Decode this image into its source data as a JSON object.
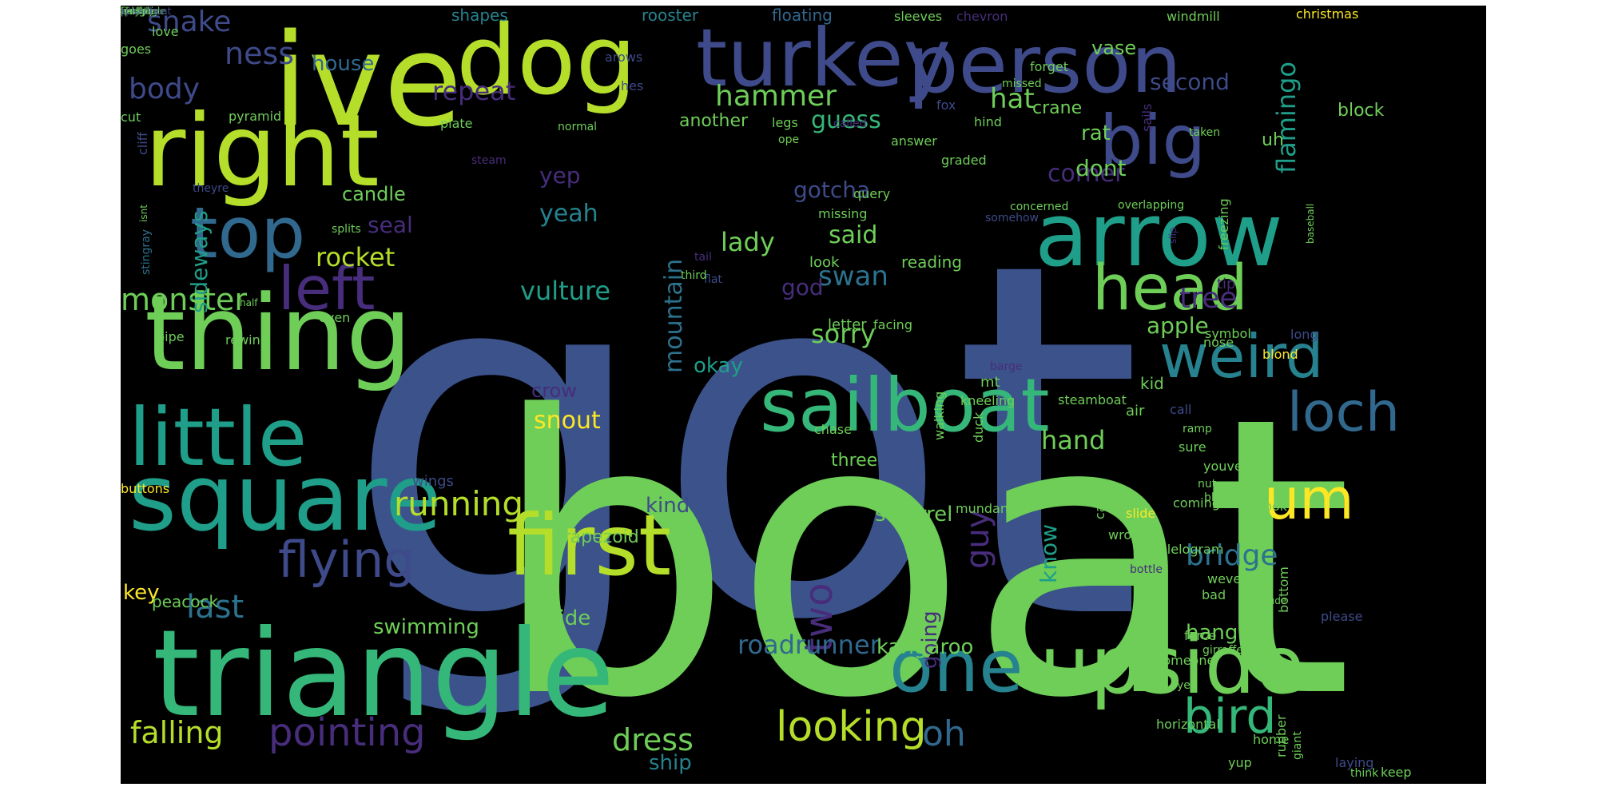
{
  "palette": {
    "navy": "#3b528b",
    "indigo": "#46327e",
    "purple": "#472d7b",
    "blue": "#31688e",
    "teal": "#26828e",
    "sea": "#1f9e89",
    "green": "#35b779",
    "lime": "#6ece58",
    "yellowgreen": "#b5de2b",
    "yellow": "#fde725",
    "dkblue": "#3e4a89",
    "mid": "#2c728e"
  },
  "words": [
    {
      "t": "got",
      "c": "navy"
    },
    {
      "t": "boat",
      "c": "lime"
    },
    {
      "t": "triangle",
      "c": "green"
    },
    {
      "t": "ive",
      "c": "yellowgreen"
    },
    {
      "t": "dog",
      "c": "yellowgreen"
    },
    {
      "t": "turkey",
      "c": "dkblue"
    },
    {
      "t": "person",
      "c": "dkblue"
    },
    {
      "t": "right",
      "c": "yellowgreen"
    },
    {
      "t": "thing",
      "c": "lime"
    },
    {
      "t": "square",
      "c": "sea"
    },
    {
      "t": "little",
      "c": "sea"
    },
    {
      "t": "arrow",
      "c": "sea"
    },
    {
      "t": "upside",
      "c": "lime"
    },
    {
      "t": "first",
      "c": "yellowgreen"
    },
    {
      "t": "sailboat",
      "c": "green"
    },
    {
      "t": "head",
      "c": "lime"
    },
    {
      "t": "big",
      "c": "dkblue"
    },
    {
      "t": "weird",
      "c": "teal"
    },
    {
      "t": "top",
      "c": "blue"
    },
    {
      "t": "left",
      "c": "purple"
    },
    {
      "t": "one",
      "c": "teal"
    },
    {
      "t": "um",
      "c": "yellow"
    },
    {
      "t": "loch",
      "c": "blue"
    },
    {
      "t": "flying",
      "c": "dkblue"
    },
    {
      "t": "bird",
      "c": "green"
    },
    {
      "t": "pointing",
      "c": "purple"
    },
    {
      "t": "looking",
      "c": "yellowgreen"
    },
    {
      "t": "two",
      "c": "purple"
    },
    {
      "t": "running",
      "c": "yellowgreen"
    },
    {
      "t": "monster",
      "c": "lime"
    },
    {
      "t": "last",
      "c": "mid"
    },
    {
      "t": "falling",
      "c": "yellowgreen"
    },
    {
      "t": "dress",
      "c": "lime"
    },
    {
      "t": "oh",
      "c": "blue"
    },
    {
      "t": "roadrunner",
      "c": "blue"
    },
    {
      "t": "hammer",
      "c": "lime"
    },
    {
      "t": "vulture",
      "c": "sea"
    },
    {
      "t": "rocket",
      "c": "yellowgreen"
    },
    {
      "t": "mountain",
      "c": "mid"
    },
    {
      "t": "lady",
      "c": "lime"
    },
    {
      "t": "swan",
      "c": "mid"
    },
    {
      "t": "sorry",
      "c": "lime"
    },
    {
      "t": "bridge",
      "c": "mid"
    },
    {
      "t": "hand",
      "c": "lime"
    },
    {
      "t": "hat",
      "c": "lime"
    },
    {
      "t": "guess",
      "c": "green"
    },
    {
      "t": "tree",
      "c": "purple"
    },
    {
      "t": "apple",
      "c": "lime"
    },
    {
      "t": "corner",
      "c": "purple"
    },
    {
      "t": "flamingo",
      "c": "sea"
    },
    {
      "t": "repeat",
      "c": "purple"
    },
    {
      "t": "ness",
      "c": "dkblue"
    },
    {
      "t": "snake",
      "c": "dkblue"
    },
    {
      "t": "body",
      "c": "dkblue"
    },
    {
      "t": "house",
      "c": "blue"
    },
    {
      "t": "second",
      "c": "dkblue"
    },
    {
      "t": "gotcha",
      "c": "dkblue"
    },
    {
      "t": "yeah",
      "c": "teal"
    },
    {
      "t": "yep",
      "c": "purple"
    },
    {
      "t": "seal",
      "c": "purple"
    },
    {
      "t": "candle",
      "c": "lime"
    },
    {
      "t": "sideways",
      "c": "sea"
    },
    {
      "t": "said",
      "c": "lime"
    },
    {
      "t": "dont",
      "c": "lime"
    },
    {
      "t": "guy",
      "c": "purple"
    },
    {
      "t": "know",
      "c": "sea"
    },
    {
      "t": "god",
      "c": "purple"
    },
    {
      "t": "okay",
      "c": "sea"
    },
    {
      "t": "snout",
      "c": "yellow"
    },
    {
      "t": "crow",
      "c": "purple"
    },
    {
      "t": "kind",
      "c": "dkblue"
    },
    {
      "t": "squirrel",
      "c": "lime"
    },
    {
      "t": "swimming",
      "c": "lime"
    },
    {
      "t": "side",
      "c": "lime"
    },
    {
      "t": "ship",
      "c": "teal"
    },
    {
      "t": "going",
      "c": "purple"
    },
    {
      "t": "kangaroo",
      "c": "lime"
    },
    {
      "t": "hang",
      "c": "lime"
    },
    {
      "t": "key",
      "c": "yellow"
    },
    {
      "t": "peacock",
      "c": "lime"
    },
    {
      "t": "three",
      "c": "lime"
    },
    {
      "t": "trapezoid",
      "c": "lime"
    },
    {
      "t": "wings",
      "c": "dkblue"
    },
    {
      "t": "rat",
      "c": "lime"
    },
    {
      "t": "vase",
      "c": "lime"
    },
    {
      "t": "crane",
      "c": "lime"
    },
    {
      "t": "uh",
      "c": "lime"
    },
    {
      "t": "block",
      "c": "lime"
    },
    {
      "t": "another",
      "c": "lime"
    },
    {
      "t": "shapes",
      "c": "teal"
    },
    {
      "t": "rooster",
      "c": "teal"
    },
    {
      "t": "floating",
      "c": "blue"
    },
    {
      "t": "sleeves",
      "c": "lime"
    },
    {
      "t": "chevron",
      "c": "purple"
    },
    {
      "t": "windmill",
      "c": "lime"
    },
    {
      "t": "christmas",
      "c": "yellow"
    },
    {
      "t": "love",
      "c": "lime"
    },
    {
      "t": "goes",
      "c": "lime"
    },
    {
      "t": "arows",
      "c": "dkblue"
    },
    {
      "t": "hes",
      "c": "dkblue"
    },
    {
      "t": "forget",
      "c": "lime"
    },
    {
      "t": "missed",
      "c": "lime"
    },
    {
      "t": "fox",
      "c": "dkblue"
    },
    {
      "t": "hind",
      "c": "lime"
    },
    {
      "t": "called",
      "c": "purple"
    },
    {
      "t": "legs",
      "c": "lime"
    },
    {
      "t": "normal",
      "c": "lime"
    },
    {
      "t": "ope",
      "c": "lime"
    },
    {
      "t": "graded",
      "c": "lime"
    },
    {
      "t": "answer",
      "c": "lime"
    },
    {
      "t": "taken",
      "c": "lime"
    },
    {
      "t": "sails",
      "c": "purple"
    },
    {
      "t": "pyramid",
      "c": "lime"
    },
    {
      "t": "plate",
      "c": "lime"
    },
    {
      "t": "cut",
      "c": "lime"
    },
    {
      "t": "cliff",
      "c": "dkblue"
    },
    {
      "t": "steam",
      "c": "purple"
    },
    {
      "t": "theyre",
      "c": "dkblue"
    },
    {
      "t": "isnt",
      "c": "lime"
    },
    {
      "t": "stingray",
      "c": "mid"
    },
    {
      "t": "splits",
      "c": "lime"
    },
    {
      "t": "query",
      "c": "lime"
    },
    {
      "t": "missing",
      "c": "lime"
    },
    {
      "t": "somehow",
      "c": "dkblue"
    },
    {
      "t": "concerned",
      "c": "lime"
    },
    {
      "t": "overlapping",
      "c": "lime"
    },
    {
      "t": "baseball",
      "c": "lime"
    },
    {
      "t": "tail",
      "c": "purple"
    },
    {
      "t": "flat",
      "c": "dkblue"
    },
    {
      "t": "look",
      "c": "lime"
    },
    {
      "t": "reading",
      "c": "lime"
    },
    {
      "t": "slip",
      "c": "purple"
    },
    {
      "t": "third",
      "c": "lime"
    },
    {
      "t": "freezing",
      "c": "lime"
    },
    {
      "t": "tip",
      "c": "purple"
    },
    {
      "t": "half",
      "c": "lime"
    },
    {
      "t": "even",
      "c": "lime"
    },
    {
      "t": "pipe",
      "c": "lime"
    },
    {
      "t": "rewind",
      "c": "lime"
    },
    {
      "t": "letter",
      "c": "lime"
    },
    {
      "t": "facing",
      "c": "lime"
    },
    {
      "t": "symbol",
      "c": "lime"
    },
    {
      "t": "long",
      "c": "dkblue"
    },
    {
      "t": "nose",
      "c": "lime"
    },
    {
      "t": "blond",
      "c": "yellow"
    },
    {
      "t": "barge",
      "c": "purple"
    },
    {
      "t": "mt",
      "c": "lime"
    },
    {
      "t": "kid",
      "c": "lime"
    },
    {
      "t": "air",
      "c": "lime"
    },
    {
      "t": "chase",
      "c": "lime"
    },
    {
      "t": "kneeling",
      "c": "lime"
    },
    {
      "t": "steamboat",
      "c": "lime"
    },
    {
      "t": "call",
      "c": "dkblue"
    },
    {
      "t": "ramp",
      "c": "lime"
    },
    {
      "t": "walking",
      "c": "lime"
    },
    {
      "t": "duck",
      "c": "lime"
    },
    {
      "t": "sure",
      "c": "lime"
    },
    {
      "t": "youve",
      "c": "lime"
    },
    {
      "t": "nut",
      "c": "lime"
    },
    {
      "t": "blob",
      "c": "lime"
    },
    {
      "t": "coming",
      "c": "lime"
    },
    {
      "t": "book",
      "c": "lime"
    },
    {
      "t": "buttons",
      "c": "yellow"
    },
    {
      "t": "mundane",
      "c": "lime"
    },
    {
      "t": "pine",
      "c": "lime"
    },
    {
      "t": "cave",
      "c": "lime"
    },
    {
      "t": "slide",
      "c": "yellow"
    },
    {
      "t": "wrong",
      "c": "lime"
    },
    {
      "t": "parallelogram",
      "c": "lime"
    },
    {
      "t": "bottle",
      "c": "purple"
    },
    {
      "t": "weve",
      "c": "lime"
    },
    {
      "t": "bad",
      "c": "lime"
    },
    {
      "t": "dude",
      "c": "lime"
    },
    {
      "t": "bottom",
      "c": "lime"
    },
    {
      "t": "please",
      "c": "dkblue"
    },
    {
      "t": "force",
      "c": "lime"
    },
    {
      "t": "girraffe",
      "c": "lime"
    },
    {
      "t": "someone",
      "c": "lime"
    },
    {
      "t": "yes",
      "c": "lime"
    },
    {
      "t": "horizontal",
      "c": "lime"
    },
    {
      "t": "home",
      "c": "lime"
    },
    {
      "t": "rubber",
      "c": "lime"
    },
    {
      "t": "yup",
      "c": "lime"
    },
    {
      "t": "giant",
      "c": "lime"
    },
    {
      "t": "laying",
      "c": "dkblue"
    },
    {
      "t": "think",
      "c": "lime"
    },
    {
      "t": "keep",
      "c": "lime"
    },
    {
      "t": "hasnt",
      "c": "lime"
    },
    {
      "t": "querey",
      "c": "lime"
    },
    {
      "t": "whatever",
      "c": "purple"
    },
    {
      "t": "penguin",
      "c": "lime"
    },
    {
      "t": "rectangle",
      "c": "lime"
    },
    {
      "t": "stack",
      "c": "lime"
    },
    {
      "t": "fish",
      "c": "lime"
    },
    {
      "t": "really",
      "c": "lime"
    },
    {
      "t": "shell",
      "c": "lime"
    },
    {
      "t": "speedboat",
      "c": "dkblue"
    },
    {
      "t": "bicycle",
      "c": "lime"
    },
    {
      "t": "actual",
      "c": "lime"
    },
    {
      "t": "scissors",
      "c": "dkblue"
    }
  ]
}
